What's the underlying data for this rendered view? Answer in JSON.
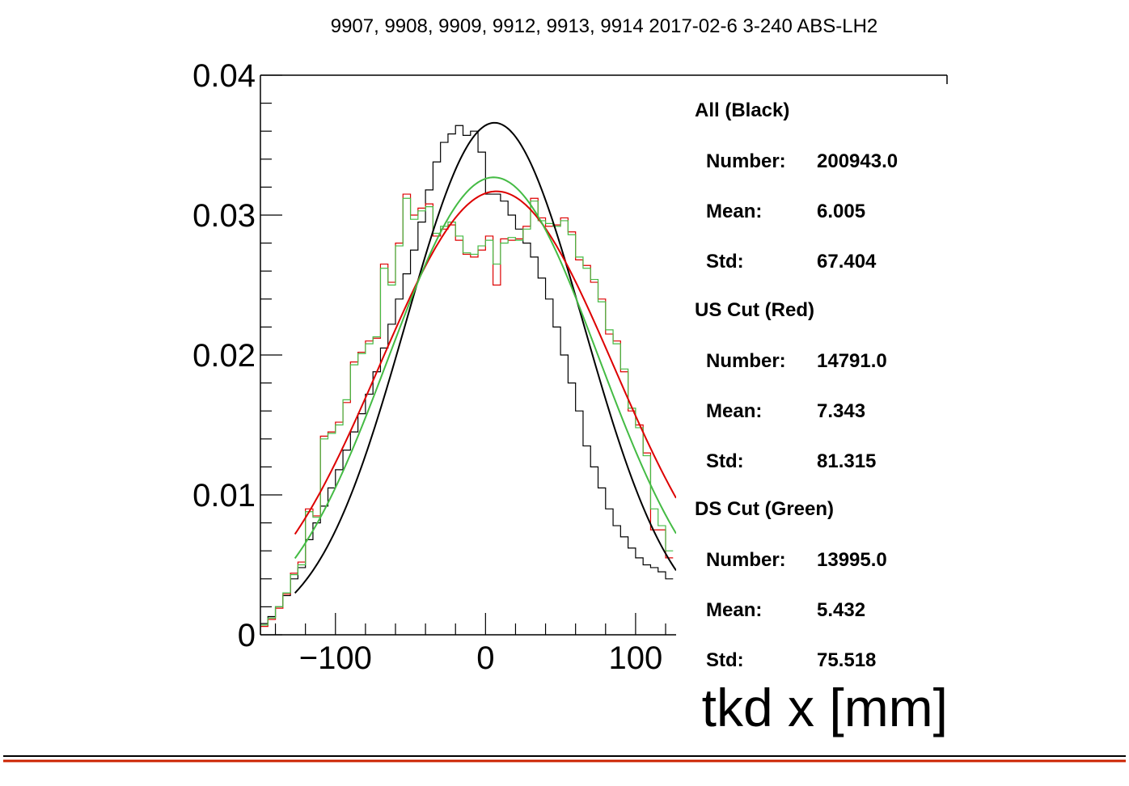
{
  "chart_data": {
    "type": "line",
    "title": "9907, 9908, 9909, 9912, 9913, 9914 2017-02-6 3-240 ABS-LH2",
    "xlabel": "tkd x [mm]",
    "ylabel": "",
    "xlim": [
      -150,
      127
    ],
    "ylim": [
      0,
      0.04
    ],
    "xticks": [
      -100,
      0,
      100
    ],
    "xtick_labels": [
      "−100",
      "0",
      "100"
    ],
    "yticks": [
      0,
      0.01,
      0.02,
      0.03,
      0.04
    ],
    "ytick_labels": [
      "0",
      "0.01",
      "0.02",
      "0.03",
      "0.04"
    ],
    "bin_width": 5,
    "bin_start": -150,
    "series": [
      {
        "name": "All (Black)",
        "color": "#000000",
        "kind": "histogram",
        "values": [
          0.0008,
          0.0013,
          0.002,
          0.0028,
          0.004,
          0.0048,
          0.0068,
          0.008,
          0.0092,
          0.0105,
          0.0118,
          0.0132,
          0.0145,
          0.0158,
          0.0172,
          0.0188,
          0.0205,
          0.0222,
          0.024,
          0.0258,
          0.0275,
          0.0295,
          0.0318,
          0.0338,
          0.0352,
          0.0358,
          0.0364,
          0.0357,
          0.036,
          0.0345,
          0.0315,
          0.0315,
          0.031,
          0.03,
          0.029,
          0.028,
          0.027,
          0.0255,
          0.024,
          0.022,
          0.02,
          0.018,
          0.016,
          0.0135,
          0.012,
          0.0105,
          0.009,
          0.0078,
          0.007,
          0.0062,
          0.0055,
          0.005,
          0.0048,
          0.0045,
          0.004
        ]
      },
      {
        "name": "US Cut (Red)",
        "color": "#dd0000",
        "kind": "histogram",
        "values": [
          0.0006,
          0.0011,
          0.0019,
          0.0029,
          0.0044,
          0.0052,
          0.009,
          0.0085,
          0.0142,
          0.0145,
          0.0152,
          0.0166,
          0.0195,
          0.0202,
          0.021,
          0.0212,
          0.0265,
          0.0252,
          0.028,
          0.0315,
          0.03,
          0.0305,
          0.0308,
          0.0285,
          0.029,
          0.0293,
          0.0282,
          0.0272,
          0.027,
          0.0275,
          0.0285,
          0.025,
          0.0283,
          0.0282,
          0.0283,
          0.0292,
          0.0312,
          0.0298,
          0.0292,
          0.0293,
          0.0298,
          0.0288,
          0.0268,
          0.0264,
          0.0252,
          0.024,
          0.0215,
          0.021,
          0.0188,
          0.016,
          0.015,
          0.013,
          0.0075,
          0.0075,
          0.0055
        ]
      },
      {
        "name": "DS Cut (Green)",
        "color": "#44bb44",
        "kind": "histogram",
        "values": [
          0.0007,
          0.0012,
          0.002,
          0.003,
          0.0043,
          0.005,
          0.0088,
          0.0084,
          0.014,
          0.0144,
          0.015,
          0.0168,
          0.0193,
          0.0201,
          0.0208,
          0.0213,
          0.0262,
          0.025,
          0.0278,
          0.0312,
          0.0297,
          0.0303,
          0.0306,
          0.0287,
          0.0292,
          0.0295,
          0.0285,
          0.0273,
          0.0272,
          0.0278,
          0.0282,
          0.0265,
          0.028,
          0.0284,
          0.0282,
          0.029,
          0.031,
          0.0296,
          0.0294,
          0.0292,
          0.0296,
          0.0286,
          0.027,
          0.0262,
          0.0254,
          0.0238,
          0.0218,
          0.0208,
          0.019,
          0.0162,
          0.0148,
          0.0128,
          0.009,
          0.0078,
          0.006
        ]
      }
    ],
    "fits": [
      {
        "name": "All fit",
        "color": "#000000",
        "mean": 6.005,
        "sigma": 59.4,
        "amp": 0.0366,
        "range": [
          -127,
          127
        ]
      },
      {
        "name": "US fit",
        "color": "#dd0000",
        "mean": 7.343,
        "sigma": 78.0,
        "amp": 0.0317,
        "range": [
          -127,
          127
        ]
      },
      {
        "name": "DS fit",
        "color": "#44bb44",
        "mean": 5.432,
        "sigma": 70.0,
        "amp": 0.0327,
        "range": [
          -127,
          127
        ]
      }
    ],
    "stats": [
      {
        "heading": "All (Black)",
        "rows": [
          {
            "label": "Number:",
            "value": "200943.0"
          },
          {
            "label": "Mean:",
            "value": "6.005"
          },
          {
            "label": "Std:",
            "value": "67.404"
          }
        ]
      },
      {
        "heading": "US Cut (Red)",
        "rows": [
          {
            "label": "Number:",
            "value": "14791.0"
          },
          {
            "label": "Mean:",
            "value": "7.343"
          },
          {
            "label": "Std:",
            "value": "81.315"
          }
        ]
      },
      {
        "heading": "DS Cut (Green)",
        "rows": [
          {
            "label": "Number:",
            "value": "13995.0"
          },
          {
            "label": "Mean:",
            "value": "5.432"
          },
          {
            "label": "Std:",
            "value": "75.518"
          }
        ]
      }
    ]
  }
}
